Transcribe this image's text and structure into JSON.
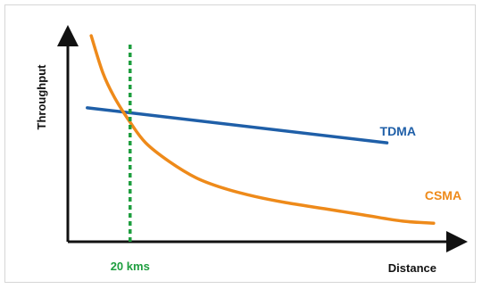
{
  "chart_data": {
    "type": "line",
    "xlabel": "Distance",
    "ylabel": "Throughput",
    "xlim": [
      0,
      100
    ],
    "ylim": [
      0,
      100
    ],
    "grid": false,
    "series": [
      {
        "name": "TDMA",
        "color": "#1f5fa8",
        "points": [
          [
            5,
            65
          ],
          [
            82,
            48
          ]
        ]
      },
      {
        "name": "CSMA",
        "color": "#ee8a1a",
        "points": [
          [
            6,
            100
          ],
          [
            9,
            82
          ],
          [
            12,
            70
          ],
          [
            16,
            58
          ],
          [
            20,
            48
          ],
          [
            26,
            39
          ],
          [
            33,
            31
          ],
          [
            40,
            26
          ],
          [
            48,
            22
          ],
          [
            56,
            19
          ],
          [
            66,
            16
          ],
          [
            76,
            13
          ],
          [
            86,
            10
          ],
          [
            94,
            9
          ]
        ]
      }
    ],
    "annotations": [
      {
        "text": "20 kms",
        "x": 16,
        "color": "#1e9e3f",
        "style": "dotted-vertical"
      }
    ]
  }
}
